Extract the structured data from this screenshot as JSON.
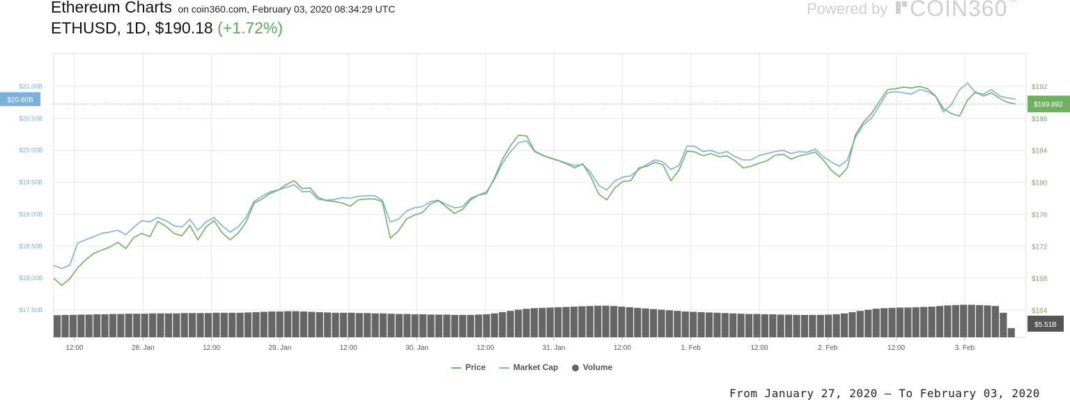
{
  "header": {
    "title": "Ethereum Charts",
    "subtitle": "on coin360.com, February 03, 2020 08:34:29 UTC",
    "ticker": "ETHUSD, 1D,",
    "price": "$190.18",
    "change": "(+1.72%)",
    "powered_by": "Powered by",
    "brand": "COIN360",
    "brand_tm": "™"
  },
  "footer": {
    "date_range": "From January 27, 2020 – To February 03, 2020"
  },
  "colors": {
    "price": "#6fb15e",
    "market_cap": "#7ab0dc",
    "volume": "#666666",
    "grid": "#e6e6e6",
    "left_axis_text": "#7ab0dc",
    "right_axis_text": "#6fb15e"
  },
  "chart_data": {
    "type": "line",
    "legend": [
      "Price",
      "Market Cap",
      "Volume"
    ],
    "legend_placement": "bottom-center",
    "grid": true,
    "x_ticks": [
      "12:00",
      "28. Jan",
      "12:00",
      "29. Jan",
      "12:00",
      "30. Jan",
      "12:00",
      "31. Jan",
      "12:00",
      "1. Feb",
      "12:00",
      "2. Feb",
      "12:00",
      "3. Feb"
    ],
    "left_axis": {
      "labels": [
        "$21.00B",
        "$20.50B",
        "$20.00B",
        "$19.50B",
        "$19.00B",
        "$18.50B",
        "$18.00B",
        "$17.50B"
      ],
      "ylim": [
        17.5,
        21.0
      ],
      "current_label": "$20.80B"
    },
    "right_axis": {
      "labels": [
        "$192",
        "$188",
        "$184",
        "$180",
        "$176",
        "$172",
        "$168",
        "$164"
      ],
      "ylim": [
        164,
        192
      ],
      "current_label": "$189.892"
    },
    "volume_label": "$5.51B",
    "series": [
      {
        "name": "Price",
        "values": [
          168.0,
          167.1,
          167.9,
          169.3,
          170.3,
          171.1,
          171.5,
          171.9,
          172.5,
          171.7,
          173.1,
          173.6,
          173.2,
          175.1,
          174.5,
          173.6,
          173.3,
          174.6,
          172.8,
          174.4,
          175.2,
          173.7,
          172.8,
          173.6,
          175.0,
          177.4,
          177.9,
          178.6,
          179.0,
          179.7,
          180.2,
          179.2,
          179.3,
          178.1,
          177.7,
          177.6,
          177.4,
          177.0,
          177.8,
          177.9,
          177.9,
          177.6,
          173.0,
          173.9,
          175.4,
          175.9,
          176.2,
          177.3,
          177.7,
          176.9,
          176.1,
          176.6,
          177.8,
          178.4,
          178.6,
          180.6,
          182.9,
          184.6,
          185.9,
          185.8,
          183.9,
          183.4,
          183.0,
          182.7,
          182.3,
          181.8,
          182.3,
          180.7,
          178.5,
          177.8,
          179.3,
          180.1,
          180.2,
          181.8,
          182.0,
          182.5,
          182.2,
          180.2,
          181.5,
          183.9,
          183.8,
          183.3,
          183.6,
          183.2,
          183.3,
          182.7,
          181.8,
          182.0,
          182.4,
          182.7,
          183.4,
          183.5,
          182.9,
          183.3,
          183.5,
          183.8,
          182.8,
          181.5,
          180.7,
          181.8,
          185.9,
          187.5,
          188.6,
          190.1,
          191.6,
          191.7,
          191.9,
          191.8,
          192.0,
          191.7,
          190.8,
          189.2,
          188.6,
          188.3,
          190.3,
          191.3,
          190.8,
          191.2,
          190.5,
          190.0,
          189.8
        ]
      },
      {
        "name": "Market Cap",
        "values": [
          18.2,
          18.15,
          18.2,
          18.55,
          18.6,
          18.65,
          18.7,
          18.72,
          18.75,
          18.68,
          18.8,
          18.9,
          18.88,
          18.95,
          18.9,
          18.82,
          18.8,
          18.92,
          18.75,
          18.88,
          18.95,
          18.82,
          18.72,
          18.8,
          18.95,
          19.2,
          19.28,
          19.35,
          19.38,
          19.42,
          19.46,
          19.35,
          19.36,
          19.23,
          19.22,
          19.23,
          19.26,
          19.25,
          19.28,
          19.29,
          19.29,
          19.22,
          18.88,
          18.92,
          19.05,
          19.1,
          19.12,
          19.2,
          19.22,
          19.15,
          19.1,
          19.12,
          19.25,
          19.3,
          19.35,
          19.55,
          19.8,
          19.98,
          20.12,
          20.15,
          19.98,
          19.92,
          19.88,
          19.84,
          19.8,
          19.76,
          19.78,
          19.65,
          19.45,
          19.38,
          19.52,
          19.58,
          19.6,
          19.7,
          19.78,
          19.85,
          19.82,
          19.7,
          19.76,
          20.07,
          20.06,
          19.98,
          20.0,
          19.95,
          19.98,
          19.9,
          19.85,
          19.85,
          19.92,
          19.95,
          19.98,
          20.0,
          19.95,
          19.98,
          19.97,
          20.02,
          19.9,
          19.82,
          19.75,
          19.85,
          20.2,
          20.4,
          20.5,
          20.7,
          20.9,
          20.92,
          20.9,
          20.88,
          20.95,
          20.92,
          20.85,
          20.6,
          20.72,
          20.95,
          21.05,
          20.9,
          20.88,
          20.95,
          20.85,
          20.82,
          20.8
        ]
      },
      {
        "name": "Volume",
        "unit": "relative",
        "values": [
          0.72,
          0.73,
          0.73,
          0.74,
          0.74,
          0.75,
          0.75,
          0.76,
          0.76,
          0.77,
          0.77,
          0.77,
          0.78,
          0.78,
          0.78,
          0.78,
          0.79,
          0.79,
          0.79,
          0.79,
          0.8,
          0.8,
          0.8,
          0.8,
          0.81,
          0.82,
          0.83,
          0.84,
          0.84,
          0.85,
          0.85,
          0.84,
          0.83,
          0.82,
          0.81,
          0.8,
          0.8,
          0.8,
          0.79,
          0.79,
          0.78,
          0.78,
          0.77,
          0.76,
          0.76,
          0.75,
          0.75,
          0.74,
          0.74,
          0.74,
          0.73,
          0.73,
          0.73,
          0.74,
          0.75,
          0.78,
          0.82,
          0.86,
          0.9,
          0.93,
          0.95,
          0.96,
          0.97,
          0.98,
          0.99,
          1.0,
          1.01,
          1.02,
          1.03,
          1.03,
          1.02,
          1.0,
          0.98,
          0.96,
          0.94,
          0.92,
          0.9,
          0.88,
          0.86,
          0.84,
          0.83,
          0.82,
          0.81,
          0.8,
          0.79,
          0.78,
          0.77,
          0.76,
          0.76,
          0.75,
          0.75,
          0.74,
          0.74,
          0.73,
          0.73,
          0.73,
          0.73,
          0.74,
          0.75,
          0.78,
          0.82,
          0.86,
          0.9,
          0.93,
          0.95,
          0.96,
          0.97,
          0.97,
          0.98,
          0.99,
          1.0,
          1.02,
          1.04,
          1.05,
          1.06,
          1.06,
          1.05,
          1.04,
          1.02,
          0.8,
          0.3
        ]
      }
    ]
  }
}
